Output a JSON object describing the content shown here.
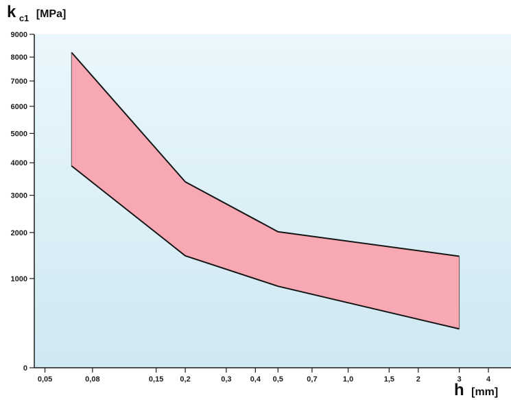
{
  "chart_data": {
    "type": "area",
    "x_scale": "log",
    "y_scale": "nonlinear",
    "ylabel_main": "k",
    "ylabel_sub": "c1",
    "ylabel_unit": "[MPa]",
    "xlabel_main": "h",
    "xlabel_unit": "[mm]",
    "x_ticks": [
      {
        "value": 0.05,
        "label": "0,05"
      },
      {
        "value": 0.08,
        "label": "0,08"
      },
      {
        "value": 0.15,
        "label": "0,15"
      },
      {
        "value": 0.2,
        "label": "0,2"
      },
      {
        "value": 0.3,
        "label": "0,3"
      },
      {
        "value": 0.4,
        "label": "0,4"
      },
      {
        "value": 0.5,
        "label": "0,5"
      },
      {
        "value": 0.7,
        "label": "0,7"
      },
      {
        "value": 1.0,
        "label": "1,0"
      },
      {
        "value": 1.5,
        "label": "1,5"
      },
      {
        "value": 2,
        "label": "2"
      },
      {
        "value": 3,
        "label": "3"
      },
      {
        "value": 4,
        "label": "4"
      }
    ],
    "y_ticks": [
      {
        "value": 0,
        "label": "0"
      },
      {
        "value": 1000,
        "label": "1000"
      },
      {
        "value": 2000,
        "label": "2000"
      },
      {
        "value": 3000,
        "label": "3000"
      },
      {
        "value": 4000,
        "label": "4000"
      },
      {
        "value": 5000,
        "label": "5000"
      },
      {
        "value": 6000,
        "label": "6000"
      },
      {
        "value": 7000,
        "label": "7000"
      },
      {
        "value": 8000,
        "label": "8000"
      },
      {
        "value": 9000,
        "label": "9000"
      }
    ],
    "xlim": [
      0.045,
      5.0
    ],
    "ylim": [
      0,
      9000
    ],
    "grid": false,
    "series": [
      {
        "x": [
          0.065,
          0.2,
          0.5,
          3
        ],
        "y": [
          8200,
          3400,
          2020,
          1450
        ]
      },
      {
        "x": [
          0.065,
          0.2,
          0.5,
          3
        ],
        "y": [
          3900,
          1460,
          860,
          250
        ]
      }
    ],
    "band_fill": "#f7a8b3",
    "background_top": "#eaf7fd",
    "background_bottom": "#cfe8f1",
    "line_color": "#151515",
    "axis_color": "#1b1b1b"
  }
}
